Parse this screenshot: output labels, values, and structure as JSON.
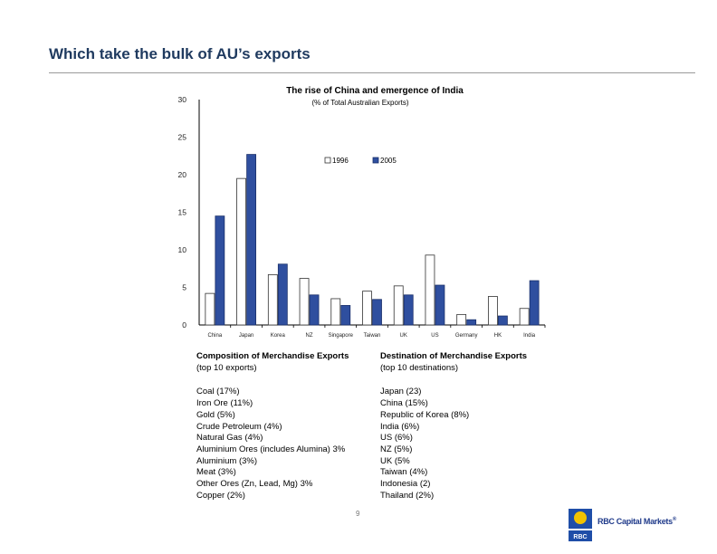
{
  "slide": {
    "title": "Which take the bulk of AU’s exports",
    "page_number": "9"
  },
  "chart_data": {
    "type": "bar",
    "title": "The rise of China and emergence of India",
    "subtitle": "(% of Total Australian Exports)",
    "categories": [
      "China",
      "Japan",
      "Korea",
      "NZ",
      "Singapore",
      "Taiwan",
      "UK",
      "US",
      "Germany",
      "HK",
      "India"
    ],
    "series": [
      {
        "name": "1996",
        "values": [
          4.2,
          19.5,
          6.7,
          6.2,
          3.5,
          4.5,
          5.2,
          9.3,
          1.4,
          3.8,
          2.2
        ],
        "color": "#ffffff"
      },
      {
        "name": "2005",
        "values": [
          14.5,
          22.7,
          8.1,
          4.0,
          2.6,
          3.4,
          4.0,
          5.3,
          0.7,
          1.2,
          5.9
        ],
        "color": "#2f4f9f"
      }
    ],
    "ylim": [
      0,
      30
    ],
    "yticks": [
      "0",
      "5",
      "10",
      "15",
      "20",
      "25",
      "30"
    ],
    "xlabel": "",
    "ylabel": "",
    "legend": "upper-center",
    "grid": false
  },
  "composition": {
    "title": "Composition of Merchandise Exports",
    "subtitle": "(top 10 exports)",
    "items": [
      "Coal (17%)",
      "Iron Ore (11%)",
      "Gold (5%)",
      "Crude Petroleum (4%)",
      "Natural Gas (4%)",
      "Aluminium Ores (includes Alumina) 3%",
      "Aluminium (3%)",
      "Meat (3%)",
      "Other Ores (Zn, Lead, Mg) 3%",
      "Copper (2%)"
    ]
  },
  "destination": {
    "title": "Destination of Merchandise Exports",
    "subtitle": "(top 10 destinations)",
    "items": [
      "Japan (23)",
      "China (15%)",
      "Republic of Korea (8%)",
      "India (6%)",
      "US (6%)",
      "NZ (5%)",
      "UK (5%",
      "Taiwan (4%)",
      "Indonesia (2)",
      "Thailand (2%)"
    ]
  },
  "logo": {
    "text": "RBC Capital Markets",
    "mark": "RBC",
    "trademark": "®"
  }
}
